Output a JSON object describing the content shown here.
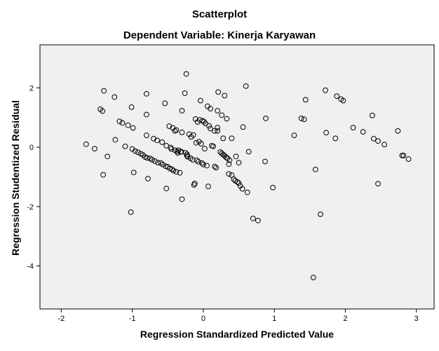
{
  "figure": {
    "title": "Scatterplot",
    "subtitle": "Dependent Variable: Kinerja Karyawan"
  },
  "chart_data": {
    "type": "scatter",
    "title": "Scatterplot",
    "subtitle": "Dependent Variable: Kinerja Karyawan",
    "xlabel": "Regression Standardized Predicted Value",
    "ylabel": "Regression Studentized Residual",
    "xlim": [
      -2.3,
      3.25
    ],
    "ylim": [
      -5.45,
      3.45
    ],
    "x_ticks": [
      "-2",
      "-1",
      "0",
      "1",
      "2",
      "3"
    ],
    "y_ticks": [
      "2",
      "0",
      "-2",
      "-4"
    ],
    "grid": false,
    "plot_background": "#f0f0f0",
    "marker": "hollow-circle",
    "marker_color": "#000000",
    "points": [
      [
        -1.65,
        0.1
      ],
      [
        -1.53,
        -0.05
      ],
      [
        -1.45,
        1.28
      ],
      [
        -1.42,
        1.22
      ],
      [
        -1.41,
        -0.93
      ],
      [
        -1.4,
        1.9
      ],
      [
        -1.35,
        -0.31
      ],
      [
        -1.25,
        1.69
      ],
      [
        -1.24,
        0.25
      ],
      [
        -1.18,
        0.87
      ],
      [
        -1.14,
        0.82
      ],
      [
        -1.1,
        0.03
      ],
      [
        -1.06,
        0.74
      ],
      [
        -1.02,
        -2.19
      ],
      [
        -1.01,
        1.35
      ],
      [
        -1.0,
        -0.06
      ],
      [
        -0.99,
        0.65
      ],
      [
        -0.98,
        -0.85
      ],
      [
        -0.96,
        -0.13
      ],
      [
        -0.92,
        -0.17
      ],
      [
        -0.88,
        -0.22
      ],
      [
        -0.85,
        -0.26
      ],
      [
        -0.82,
        -0.33
      ],
      [
        -0.8,
        1.8
      ],
      [
        -0.8,
        1.1
      ],
      [
        -0.8,
        0.4
      ],
      [
        -0.79,
        -0.36
      ],
      [
        -0.78,
        -1.06
      ],
      [
        -0.75,
        -0.38
      ],
      [
        -0.72,
        -0.42
      ],
      [
        -0.7,
        0.29
      ],
      [
        -0.68,
        -0.47
      ],
      [
        -0.65,
        0.23
      ],
      [
        -0.64,
        -0.52
      ],
      [
        -0.6,
        -0.53
      ],
      [
        -0.58,
        0.17
      ],
      [
        -0.57,
        -0.58
      ],
      [
        -0.54,
        1.48
      ],
      [
        -0.53,
        -0.64
      ],
      [
        -0.52,
        -1.39
      ],
      [
        -0.52,
        0.05
      ],
      [
        -0.5,
        -0.66
      ],
      [
        -0.48,
        0.71
      ],
      [
        -0.47,
        -0.72
      ],
      [
        -0.46,
        -0.01
      ],
      [
        -0.45,
        -0.06
      ],
      [
        -0.44,
        -0.74
      ],
      [
        -0.43,
        0.65
      ],
      [
        -0.42,
        -0.79
      ],
      [
        -0.4,
        0.55
      ],
      [
        -0.4,
        -0.1
      ],
      [
        -0.38,
        -0.83
      ],
      [
        -0.38,
        0.58
      ],
      [
        -0.37,
        -0.14
      ],
      [
        -0.36,
        -0.19
      ],
      [
        -0.35,
        -0.1
      ],
      [
        -0.33,
        -0.86
      ],
      [
        -0.32,
        -0.16
      ],
      [
        -0.31,
        -0.15
      ],
      [
        -0.3,
        1.23
      ],
      [
        -0.3,
        0.5
      ],
      [
        -0.25,
        -0.19
      ],
      [
        -0.23,
        -0.24
      ],
      [
        -0.3,
        -1.75
      ],
      [
        -0.26,
        1.82
      ],
      [
        -0.24,
        2.47
      ],
      [
        -0.23,
        -0.29
      ],
      [
        -0.22,
        -0.32
      ],
      [
        -0.2,
        0.44
      ],
      [
        -0.18,
        -0.37
      ],
      [
        -0.17,
        0.35
      ],
      [
        -0.15,
        -0.42
      ],
      [
        -0.14,
        0.41
      ],
      [
        -0.13,
        -1.27
      ],
      [
        -0.12,
        -1.22
      ],
      [
        -0.11,
        0.95
      ],
      [
        -0.1,
        0.15
      ],
      [
        -0.09,
        -0.44
      ],
      [
        -0.08,
        0.85
      ],
      [
        -0.07,
        -0.49
      ],
      [
        -0.06,
        0.19
      ],
      [
        -0.05,
        0.92
      ],
      [
        -0.04,
        1.57
      ],
      [
        -0.03,
        0.12
      ],
      [
        -0.02,
        -0.53
      ],
      [
        -0.01,
        0.89
      ],
      [
        0.0,
        -0.58
      ],
      [
        0.01,
        0.86
      ],
      [
        0.02,
        -0.05
      ],
      [
        0.03,
        0.8
      ],
      [
        0.05,
        -0.62
      ],
      [
        0.06,
        1.38
      ],
      [
        0.07,
        -1.32
      ],
      [
        0.08,
        0.72
      ],
      [
        0.1,
        0.63
      ],
      [
        0.12,
        0.05
      ],
      [
        0.14,
        0.03
      ],
      [
        0.16,
        -0.65
      ],
      [
        0.18,
        -0.69
      ],
      [
        0.2,
        0.66
      ],
      [
        0.1,
        1.3
      ],
      [
        0.16,
        0.55
      ],
      [
        0.2,
        0.55
      ],
      [
        0.24,
        -0.16
      ],
      [
        0.26,
        -0.21
      ],
      [
        0.28,
        -0.25
      ],
      [
        0.3,
        -0.29
      ],
      [
        0.32,
        -0.34
      ],
      [
        0.34,
        -0.37
      ],
      [
        0.36,
        -0.9
      ],
      [
        0.37,
        -0.44
      ],
      [
        0.4,
        -0.94
      ],
      [
        0.43,
        -1.08
      ],
      [
        0.45,
        -1.13
      ],
      [
        0.48,
        -1.17
      ],
      [
        0.5,
        -1.21
      ],
      [
        0.52,
        -1.3
      ],
      [
        0.2,
        1.23
      ],
      [
        0.21,
        1.86
      ],
      [
        0.26,
        1.08
      ],
      [
        0.28,
        0.3
      ],
      [
        0.3,
        1.74
      ],
      [
        0.33,
        0.96
      ],
      [
        0.36,
        -0.57
      ],
      [
        0.4,
        0.3
      ],
      [
        0.46,
        -0.31
      ],
      [
        0.5,
        -0.52
      ],
      [
        0.55,
        -1.4
      ],
      [
        0.56,
        0.68
      ],
      [
        0.6,
        2.06
      ],
      [
        0.62,
        -1.52
      ],
      [
        0.64,
        -0.15
      ],
      [
        0.7,
        -2.4
      ],
      [
        0.77,
        -2.47
      ],
      [
        0.87,
        -0.48
      ],
      [
        0.88,
        0.97
      ],
      [
        0.98,
        -1.36
      ],
      [
        1.28,
        0.4
      ],
      [
        1.38,
        0.97
      ],
      [
        1.42,
        0.94
      ],
      [
        1.44,
        1.6
      ],
      [
        1.55,
        -4.39
      ],
      [
        1.58,
        -0.75
      ],
      [
        1.65,
        -2.26
      ],
      [
        1.72,
        1.92
      ],
      [
        1.73,
        0.49
      ],
      [
        1.86,
        0.3
      ],
      [
        1.88,
        1.72
      ],
      [
        1.94,
        1.62
      ],
      [
        1.97,
        1.57
      ],
      [
        2.11,
        0.66
      ],
      [
        2.25,
        0.52
      ],
      [
        2.38,
        1.07
      ],
      [
        2.4,
        0.29
      ],
      [
        2.46,
        -1.23
      ],
      [
        2.46,
        0.21
      ],
      [
        2.55,
        0.09
      ],
      [
        2.74,
        0.55
      ],
      [
        2.8,
        -0.28
      ],
      [
        2.82,
        -0.28
      ],
      [
        2.89,
        -0.4
      ]
    ]
  }
}
